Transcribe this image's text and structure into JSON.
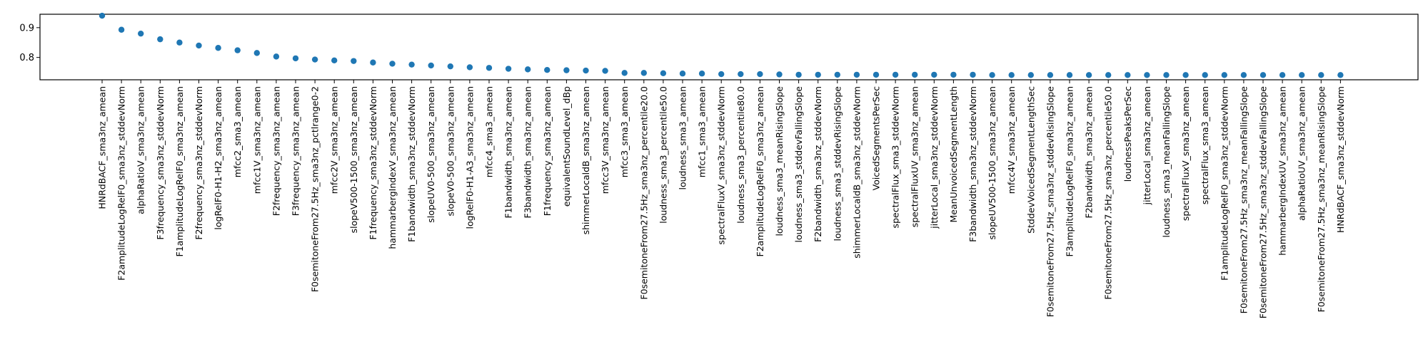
{
  "chart_data": {
    "type": "scatter",
    "title": "",
    "xlabel": "",
    "ylabel": "",
    "ylim": [
      0.725,
      0.945
    ],
    "yticks": [
      0.8,
      0.9
    ],
    "ytick_labels": [
      "0.8",
      "0.9"
    ],
    "grid": false,
    "marker_color": "#1f77b4",
    "categories": [
      "HNRdBACF_sma3nz_amean",
      "F2amplitudeLogRelF0_sma3nz_stddevNorm",
      "alphaRatioV_sma3nz_amean",
      "F3frequency_sma3nz_stddevNorm",
      "F1amplitudeLogRelF0_sma3nz_amean",
      "F2frequency_sma3nz_stddevNorm",
      "logRelF0-H1-H2_sma3nz_amean",
      "mfcc2_sma3_amean",
      "mfcc1V_sma3nz_amean",
      "F2frequency_sma3nz_amean",
      "F3frequency_sma3nz_amean",
      "F0semitoneFrom27.5Hz_sma3nz_pctlrange0-2",
      "mfcc2V_sma3nz_amean",
      "slopeV500-1500_sma3nz_amean",
      "F1frequency_sma3nz_stddevNorm",
      "hammarbergIndexV_sma3nz_amean",
      "F1bandwidth_sma3nz_stddevNorm",
      "slopeUV0-500_sma3nz_amean",
      "slopeV0-500_sma3nz_amean",
      "logRelF0-H1-A3_sma3nz_amean",
      "mfcc4_sma3_amean",
      "F1bandwidth_sma3nz_amean",
      "F3bandwidth_sma3nz_amean",
      "F1frequency_sma3nz_amean",
      "equivalentSoundLevel_dBp",
      "shimmerLocaldB_sma3nz_amean",
      "mfcc3V_sma3nz_amean",
      "mfcc3_sma3_amean",
      "F0semitoneFrom27.5Hz_sma3nz_percentile20.0",
      "loudness_sma3_percentile50.0",
      "loudness_sma3_amean",
      "mfcc1_sma3_amean",
      "spectralFluxV_sma3nz_stddevNorm",
      "loudness_sma3_percentile80.0",
      "F2amplitudeLogRelF0_sma3nz_amean",
      "loudness_sma3_meanRisingSlope",
      "loudness_sma3_stddevFallingSlope",
      "F2bandwidth_sma3nz_stddevNorm",
      "loudness_sma3_stddevRisingSlope",
      "shimmerLocaldB_sma3nz_stddevNorm",
      "VoicedSegmentsPerSec",
      "spectralFlux_sma3_stddevNorm",
      "spectralFluxUV_sma3nz_amean",
      "jitterLocal_sma3nz_stddevNorm",
      "MeanUnvoicedSegmentLength",
      "F3bandwidth_sma3nz_stddevNorm",
      "slopeUV500-1500_sma3nz_amean",
      "mfcc4V_sma3nz_amean",
      "StddevVoicedSegmentLengthSec",
      "F0semitoneFrom27.5Hz_sma3nz_stddevRisingSlope",
      "F3amplitudeLogRelF0_sma3nz_amean",
      "F2bandwidth_sma3nz_amean",
      "F0semitoneFrom27.5Hz_sma3nz_percentile50.0",
      "loudnessPeaksPerSec",
      "jitterLocal_sma3nz_amean",
      "loudness_sma3_meanFallingSlope",
      "spectralFluxV_sma3nz_amean",
      "spectralFlux_sma3_amean",
      "F1amplitudeLogRelF0_sma3nz_stddevNorm",
      "F0semitoneFrom27.5Hz_sma3nz_meanFallingSlope",
      "F0semitoneFrom27.5Hz_sma3nz_stddevFallingSlope",
      "hammarbergIndexUV_sma3nz_amean",
      "alphaRatioUV_sma3nz_amean",
      "F0semitoneFrom27.5Hz_sma3nz_meanRisingSlope",
      "HNRdBACF_sma3nz_stddevNorm"
    ],
    "values": [
      0.94,
      0.893,
      0.88,
      0.861,
      0.85,
      0.84,
      0.832,
      0.824,
      0.815,
      0.803,
      0.797,
      0.793,
      0.79,
      0.788,
      0.783,
      0.779,
      0.776,
      0.773,
      0.77,
      0.767,
      0.765,
      0.762,
      0.76,
      0.758,
      0.757,
      0.756,
      0.755,
      0.748,
      0.748,
      0.747,
      0.746,
      0.746,
      0.744,
      0.744,
      0.744,
      0.743,
      0.742,
      0.742,
      0.742,
      0.742,
      0.742,
      0.742,
      0.742,
      0.742,
      0.742,
      0.742,
      0.741,
      0.741,
      0.741,
      0.741,
      0.741,
      0.741,
      0.741,
      0.741,
      0.741,
      0.741,
      0.741,
      0.741,
      0.741,
      0.741,
      0.741,
      0.741,
      0.741,
      0.741,
      0.741
    ]
  }
}
